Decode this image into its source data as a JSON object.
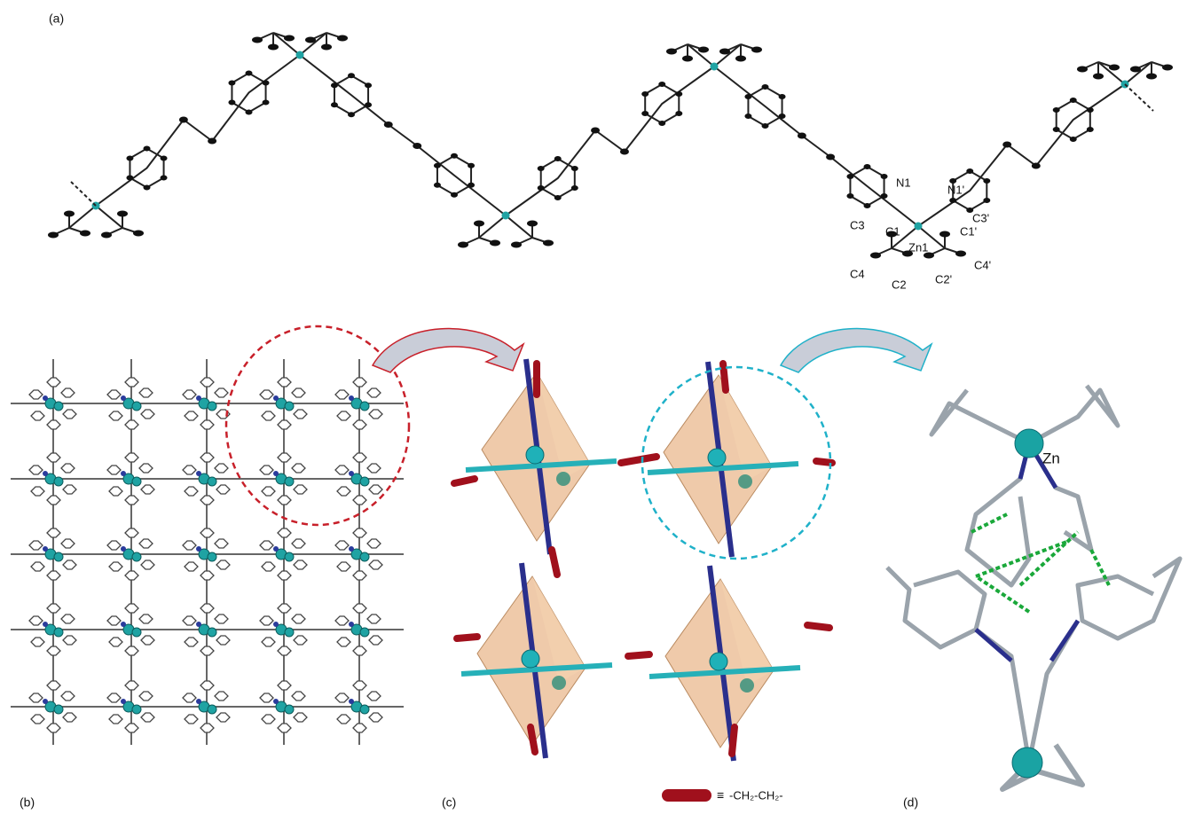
{
  "panels": {
    "a": "(a)",
    "b": "(b)",
    "c": "(c)",
    "d": "(d)"
  },
  "atom_labels": [
    "N1",
    "N1'",
    "C3",
    "C1",
    "Zn1",
    "C1'",
    "C3'",
    "C4",
    "C2",
    "C2'",
    "C4'"
  ],
  "zn_label": "Zn",
  "legend": {
    "symbol": "≡",
    "formula": "-CH₂-CH₂-"
  }
}
